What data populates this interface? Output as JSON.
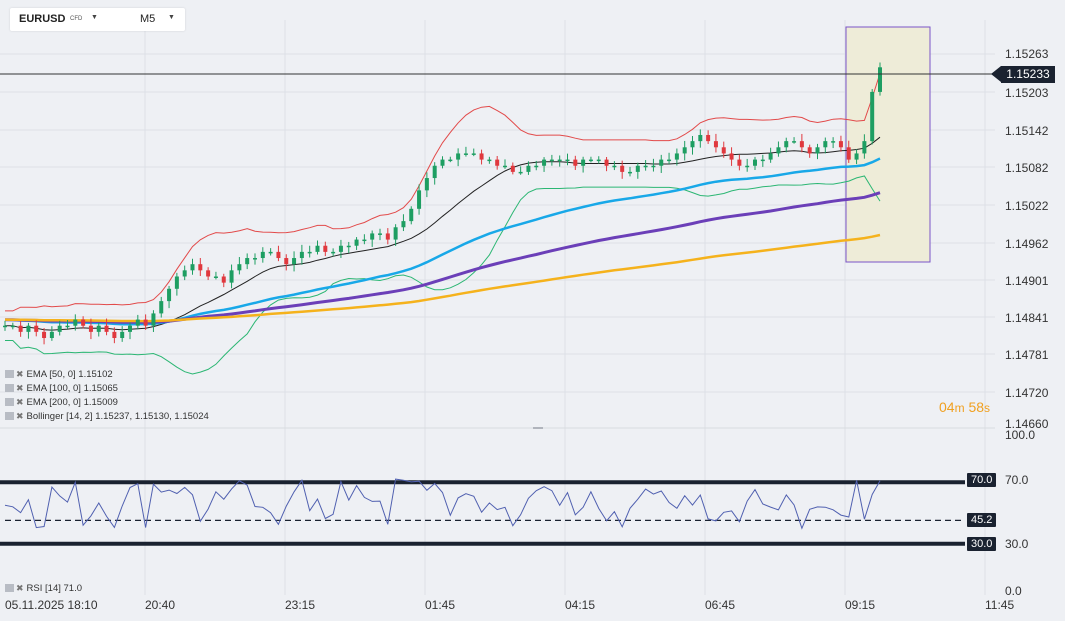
{
  "toolbar": {
    "symbol": "EURUSD",
    "symbol_type": "CFD",
    "timeframe": "M5"
  },
  "price_axis": {
    "ticks": [
      "1.15263",
      "1.15203",
      "1.15142",
      "1.15082",
      "1.15022",
      "1.14962",
      "1.14901",
      "1.14841",
      "1.14781",
      "1.14720",
      "1.14660"
    ],
    "current_price": "1.15233"
  },
  "rsi_axis": {
    "ticks": [
      "100.0",
      "70.0",
      "30.0",
      "0.0"
    ],
    "levels": {
      "upper": "70.0",
      "middle": "45.2",
      "lower": "30.0"
    }
  },
  "time_axis": {
    "labels": [
      "05.11.2025  18:10",
      "20:40",
      "23:15",
      "01:45",
      "04:15",
      "06:45",
      "09:15",
      "11:45"
    ]
  },
  "indicators": {
    "ema50": "EMA [50,  0] 1.15102",
    "ema100": "EMA [100,  0] 1.15065",
    "ema200": "EMA [200,  0] 1.15009",
    "bollinger": "Bollinger  [14, 2]  1.15237,   1.15130,   1.15024",
    "rsi": "RSI [14]  71.0"
  },
  "countdown": {
    "minutes": "04",
    "m": "m",
    "seconds": "58",
    "s": "s"
  },
  "colors": {
    "candle_up": "#1e9e62",
    "candle_down": "#e0383e",
    "ema50": "#18a8e8",
    "ema100": "#6b3fb8",
    "ema200": "#f5b21c",
    "bb_upper": "#e24a4a",
    "bb_mid": "#222222",
    "bb_lower": "#2bb673",
    "rsi_line": "#5060b0",
    "highlight": "#7b55c8"
  },
  "chart_data": {
    "type": "candlestick",
    "symbol": "EURUSD",
    "ylim": [
      1.1466,
      1.15263
    ],
    "series": [
      {
        "name": "EMA [50, 0]",
        "last": 1.15102
      },
      {
        "name": "EMA [100, 0]",
        "last": 1.15065
      },
      {
        "name": "EMA [200, 0]",
        "last": 1.15009
      },
      {
        "name": "Bollinger [14, 2]",
        "upper": 1.15237,
        "middle": 1.1513,
        "lower": 1.15024
      },
      {
        "name": "RSI [14]",
        "last": 71.0,
        "levels": [
          70,
          45.2,
          30
        ]
      }
    ],
    "close_path": [
      1.1481,
      1.1481,
      1.148,
      1.1481,
      1.148,
      1.1479,
      1.148,
      1.1481,
      1.1481,
      1.1482,
      1.1481,
      1.148,
      1.1481,
      1.148,
      1.1479,
      1.148,
      1.1481,
      1.1482,
      1.1481,
      1.1483,
      1.1485,
      1.1487,
      1.1489,
      1.149,
      1.1491,
      1.149,
      1.1489,
      1.1489,
      1.1488,
      1.149,
      1.1491,
      1.1492,
      1.1492,
      1.1493,
      1.1493,
      1.1492,
      1.1491,
      1.1492,
      1.1493,
      1.1493,
      1.1494,
      1.1493,
      1.1493,
      1.1494,
      1.1494,
      1.1495,
      1.1495,
      1.1496,
      1.1496,
      1.1495,
      1.1497,
      1.1498,
      1.15,
      1.1503,
      1.1505,
      1.1507,
      1.1508,
      1.1508,
      1.1509,
      1.1509,
      1.1509,
      1.1508,
      1.1508,
      1.1507,
      1.1507,
      1.1506,
      1.1506,
      1.1507,
      1.1507,
      1.1508,
      1.1508,
      1.1508,
      1.1508,
      1.1507,
      1.1508,
      1.1508,
      1.1508,
      1.1507,
      1.1507,
      1.1506,
      1.1506,
      1.1507,
      1.1507,
      1.1507,
      1.1508,
      1.1508,
      1.1509,
      1.151,
      1.1511,
      1.1512,
      1.1511,
      1.151,
      1.1509,
      1.1508,
      1.1507,
      1.1507,
      1.1508,
      1.1508,
      1.1509,
      1.151,
      1.1511,
      1.1511,
      1.151,
      1.1509,
      1.151,
      1.1511,
      1.1511,
      1.151,
      1.1508,
      1.1509,
      1.1511,
      1.1519,
      1.1523
    ]
  }
}
